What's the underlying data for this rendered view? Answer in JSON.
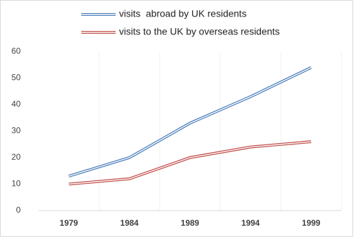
{
  "chart_data": {
    "type": "line",
    "categories": [
      "1979",
      "1984",
      "1989",
      "1994",
      "1999"
    ],
    "series": [
      {
        "name": "visits  abroad by UK residents",
        "color": "#4f81bd",
        "values": [
          13,
          20,
          33,
          43,
          54
        ]
      },
      {
        "name": "visits to the UK by overseas residents",
        "color": "#c0504d",
        "values": [
          10,
          12,
          20,
          24,
          26
        ]
      }
    ],
    "ylim": [
      0,
      60
    ],
    "yticks": [
      0,
      10,
      20,
      30,
      40,
      50,
      60
    ],
    "grid": true
  }
}
